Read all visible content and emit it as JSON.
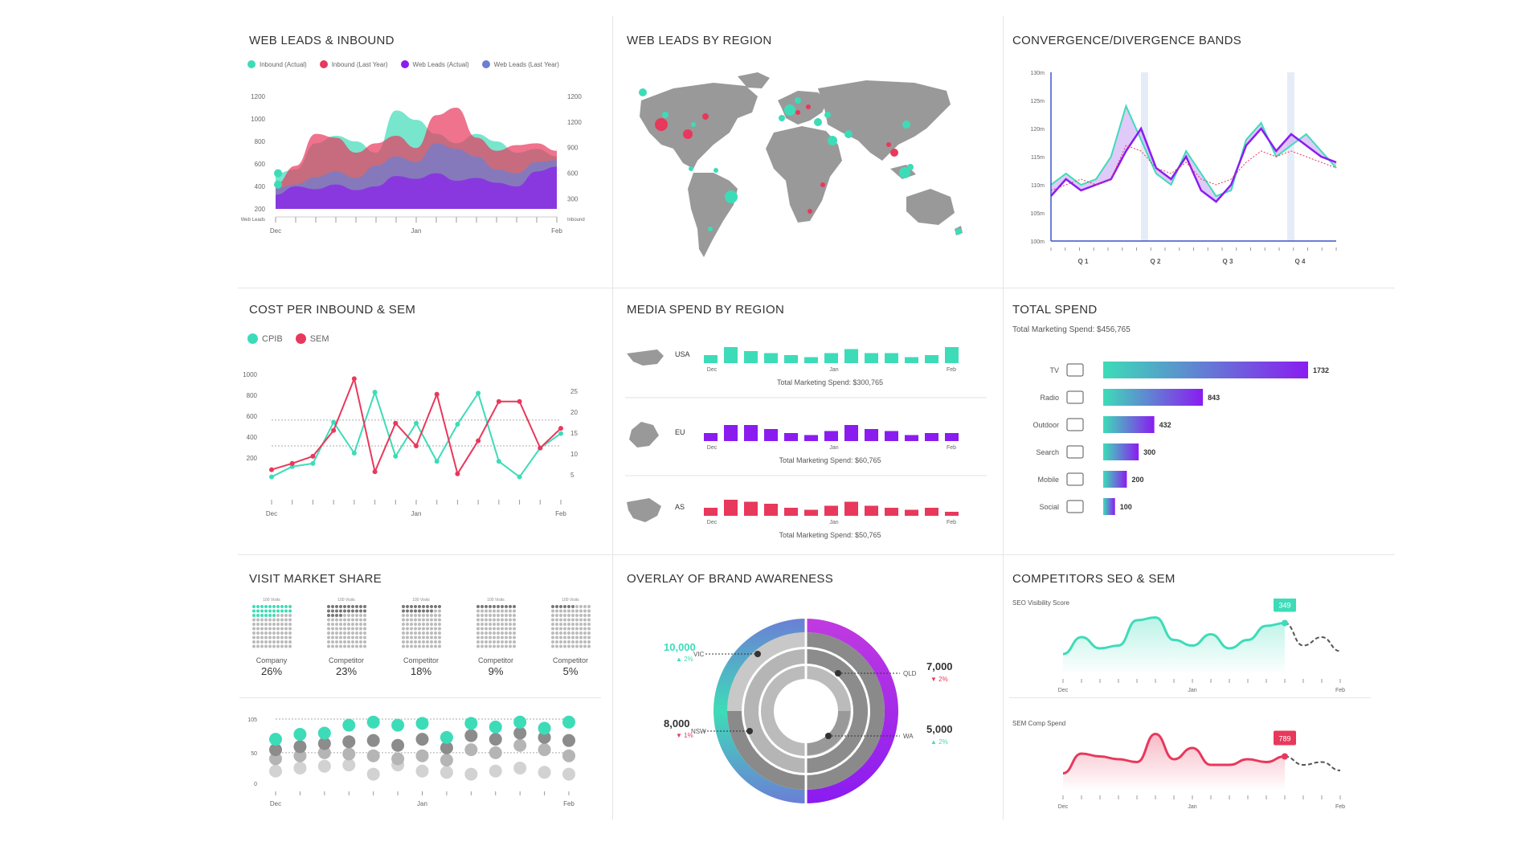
{
  "colors": {
    "teal": "#3ddcb8",
    "pink": "#e8385c",
    "purple": "#8a1cf0",
    "blue": "#6b7fd6",
    "gray": "#9a9a9a"
  },
  "panels": {
    "web_leads": {
      "title": "WEB LEADS & INBOUND",
      "legend": [
        "Inbound (Actual)",
        "Inbound (Last Year)",
        "Web Leads (Actual)",
        "Web Leads (Last Year)"
      ]
    },
    "region_map": {
      "title": "WEB LEADS BY REGION"
    },
    "bands": {
      "title": "CONVERGENCE/DIVERGENCE BANDS"
    },
    "cpib": {
      "title": "COST PER INBOUND & SEM",
      "legend": [
        "CPIB",
        "SEM"
      ]
    },
    "media": {
      "title": "MEDIA SPEND BY REGION"
    },
    "total": {
      "title": "TOTAL SPEND",
      "subtitle": "Total Marketing Spend: $456,765"
    },
    "visit": {
      "title": "VISIT MARKET SHARE"
    },
    "brand": {
      "title": "OVERLAY OF BRAND AWARENESS"
    },
    "competitors": {
      "title": "COMPETITORS SEO & SEM",
      "seo_label": "SEO Visibility Score",
      "sem_label": "SEM Comp Spend"
    }
  },
  "chart_data": [
    {
      "type": "area",
      "id": "web_leads",
      "x": [
        "Dec",
        "",
        "",
        "",
        "",
        "",
        "",
        "Jan",
        "",
        "",
        "",
        "",
        "",
        "",
        "Feb"
      ],
      "x_ticks": [
        "Dec",
        "Jan",
        "Feb"
      ],
      "left_ticks": [
        "1200",
        "1000",
        "800",
        "600",
        "400",
        "200"
      ],
      "left_label": "Web Leads",
      "right_ticks": [
        "1200",
        "1200",
        "900",
        "600",
        "300"
      ],
      "right_label": "Inbound",
      "series": [
        {
          "name": "Inbound (Actual)",
          "color": "#3ddcb8",
          "values": [
            380,
            420,
            700,
            780,
            720,
            600,
            1050,
            950,
            800,
            700,
            800,
            720,
            600,
            640,
            560
          ]
        },
        {
          "name": "Inbound (Last Year)",
          "color": "#e8385c",
          "values": [
            260,
            460,
            800,
            760,
            600,
            700,
            780,
            650,
            1000,
            1080,
            760,
            620,
            680,
            700,
            620
          ]
        },
        {
          "name": "Web Leads (Last Year)",
          "color": "#6b7fd6",
          "values": [
            220,
            260,
            340,
            400,
            330,
            460,
            560,
            500,
            700,
            640,
            560,
            420,
            380,
            500,
            520
          ]
        },
        {
          "name": "Web Leads (Actual)",
          "color": "#8a1cf0",
          "values": [
            150,
            240,
            210,
            260,
            200,
            240,
            350,
            320,
            380,
            300,
            330,
            280,
            240,
            400,
            450
          ]
        }
      ]
    },
    {
      "type": "line",
      "id": "bands",
      "y_ticks": [
        "130m",
        "125m",
        "120m",
        "115m",
        "110m",
        "105m",
        "100m"
      ],
      "x_ticks": [
        "Q 1",
        "Q 2",
        "Q 3",
        "Q 4"
      ],
      "series": [
        {
          "name": "",
          "color": "#3ddcb8",
          "values": [
            110,
            112,
            110,
            111,
            115,
            124,
            118,
            112,
            110,
            116,
            112,
            108,
            109,
            118,
            121,
            115,
            117,
            119,
            116,
            113
          ]
        },
        {
          "name": "",
          "color": "#8a1cf0",
          "values": [
            108,
            111,
            109,
            110,
            111,
            116,
            120,
            113,
            111,
            115,
            109,
            107,
            110,
            117,
            120,
            116,
            119,
            117,
            115,
            114
          ]
        },
        {
          "name": "",
          "color": "#e8385c",
          "values": [
            109,
            110,
            111,
            110,
            111,
            117,
            116,
            113,
            112,
            114,
            111,
            110,
            111,
            114,
            116,
            115,
            116,
            115,
            114,
            113
          ]
        }
      ]
    },
    {
      "type": "line",
      "id": "cpib",
      "x_ticks": [
        "Dec",
        "Jan",
        "Feb"
      ],
      "left_ticks": [
        "1000",
        "800",
        "600",
        "400",
        "200"
      ],
      "right_ticks": [
        "25",
        "20",
        "15",
        "10",
        "5"
      ],
      "series": [
        {
          "name": "CPIB",
          "color": "#3ddcb8",
          "values": [
            50,
            150,
            180,
            580,
            280,
            870,
            250,
            570,
            200,
            560,
            860,
            200,
            50,
            330,
            470
          ]
        },
        {
          "name": "SEM",
          "color": "#e8385c",
          "values": [
            120,
            180,
            250,
            500,
            1000,
            100,
            570,
            350,
            850,
            80,
            400,
            780,
            780,
            330,
            520
          ]
        }
      ]
    },
    {
      "type": "bar",
      "id": "media",
      "x_ticks": [
        "Dec",
        "Jan",
        "Feb"
      ],
      "series": [
        {
          "name": "USA",
          "color": "#3ddcb8",
          "values": [
            4,
            8,
            6,
            5,
            4,
            3,
            5,
            7,
            5,
            5,
            3,
            4,
            8
          ],
          "total": "Total Marketing Spend: $300,765"
        },
        {
          "name": "EU",
          "color": "#8a1cf0",
          "values": [
            4,
            8,
            8,
            6,
            4,
            3,
            5,
            8,
            6,
            5,
            3,
            4,
            4
          ],
          "total": "Total Marketing Spend: $60,765"
        },
        {
          "name": "AS",
          "color": "#e8385c",
          "values": [
            4,
            8,
            7,
            6,
            4,
            3,
            5,
            7,
            5,
            4,
            3,
            4,
            2
          ],
          "total": "Total Marketing Spend: $50,765"
        }
      ]
    },
    {
      "type": "bar",
      "id": "total",
      "categories": [
        "TV",
        "Radio",
        "Outdoor",
        "Search",
        "Mobile",
        "Social"
      ],
      "icons": [
        "tv-icon",
        "radio-icon",
        "billboard-icon",
        "search-icon",
        "mobile-icon",
        "thumbs-up-icon"
      ],
      "values": [
        1732,
        843,
        432,
        300,
        200,
        100
      ],
      "labels": [
        "1732",
        "843",
        "432",
        "300",
        "200",
        "100"
      ]
    },
    {
      "type": "table",
      "id": "visit",
      "legend_label": [
        "100 Visits",
        "100 Visits",
        "100 Visits",
        "100 Visits",
        "100 Visits"
      ],
      "categories": [
        "Company",
        "Competitor",
        "Competitor",
        "Competitor",
        "Competitor"
      ],
      "values": [
        "26%",
        "23%",
        "18%",
        "9%",
        "5%"
      ],
      "percent": [
        26,
        23,
        18,
        9,
        5
      ]
    },
    {
      "type": "scatter",
      "id": "visit_dots",
      "y_ticks": [
        "105",
        "50",
        "0"
      ],
      "x_ticks": [
        "Dec",
        "Jan",
        "Feb"
      ],
      "teal": [
        72,
        80,
        82,
        95,
        100,
        95,
        98,
        75,
        98,
        92,
        100,
        90,
        100
      ],
      "gray_dark": [
        55,
        60,
        65,
        68,
        70,
        62,
        72,
        58,
        78,
        72,
        82,
        75,
        70
      ],
      "gray_mid": [
        40,
        45,
        50,
        48,
        45,
        40,
        45,
        38,
        55,
        50,
        62,
        55,
        45
      ],
      "gray_light": [
        20,
        25,
        28,
        30,
        15,
        30,
        20,
        18,
        15,
        20,
        25,
        18,
        15
      ]
    },
    {
      "type": "pie",
      "id": "brand",
      "labels": [
        {
          "value": "10,000",
          "region": "VIC",
          "change": "▲ 2%",
          "dir": "up"
        },
        {
          "value": "8,000",
          "region": "NSW",
          "change": "▼ 1%",
          "dir": "down"
        },
        {
          "value": "7,000",
          "region": "QLD",
          "change": "▼ 2%",
          "dir": "down"
        },
        {
          "value": "5,000",
          "region": "WA",
          "change": "▲ 2%",
          "dir": "up"
        }
      ]
    },
    {
      "type": "line",
      "id": "seo",
      "x_ticks": [
        "Dec",
        "Jan",
        "Feb"
      ],
      "values": [
        30,
        60,
        40,
        45,
        90,
        95,
        55,
        45,
        65,
        40,
        55,
        80,
        85,
        45,
        60,
        35
      ],
      "callout": "349"
    },
    {
      "type": "line",
      "id": "sem",
      "x_ticks": [
        "Dec",
        "Jan",
        "Feb"
      ],
      "values": [
        25,
        60,
        55,
        50,
        45,
        95,
        50,
        70,
        40,
        40,
        50,
        45,
        55,
        40,
        45,
        30
      ],
      "callout": "789"
    }
  ]
}
